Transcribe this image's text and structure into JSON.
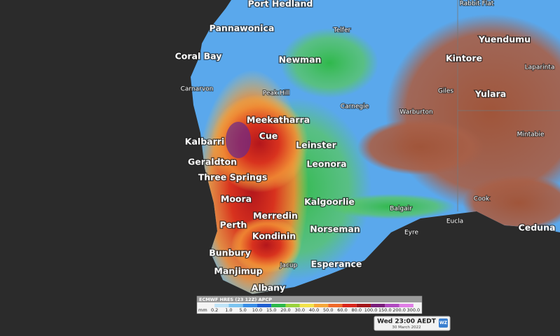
{
  "places": [
    "Port Hedland",
    "Rabbit Flat",
    "Pannawonica",
    "Telfer",
    "Yuendumu",
    "Coral Bay",
    "Newman",
    "Kintore",
    "Laparinta",
    "Carnarvon",
    "Peak Hill",
    "Giles",
    "Yulara",
    "Carnegie",
    "Warburton",
    "Meekatharra",
    "Mintabie",
    "Kalbarri",
    "Cue",
    "Leinster",
    "Geraldton",
    "Leonora",
    "Three Springs",
    "Cook",
    "Moora",
    "Kalgoorlie",
    "Balgair",
    "Merredin",
    "Perth",
    "Eucla",
    "Ceduna",
    "Eyre",
    "Norseman",
    "Kondinin",
    "Bunbury",
    "Jacup",
    "Esperance",
    "Manjimup",
    "Albany"
  ],
  "legend": {
    "title": "ECMWF HRES (23 12Z) APCP",
    "unit": "mm",
    "labels": [
      "0.2",
      "1.0",
      "5.0",
      "10.0",
      "15.0",
      "20.0",
      "30.0",
      "40.0",
      "50.0",
      "60.0",
      "80.0",
      "100.0",
      "150.0",
      "200.0",
      "300.0"
    ],
    "colors": [
      "#bfe3f7",
      "#7cc4f0",
      "#3a8ee6",
      "#1f5fd1",
      "#2db84a",
      "#9ad23c",
      "#f3e24a",
      "#f6a83a",
      "#ef6a2a",
      "#d9261c",
      "#a3161a",
      "#7a1f7a",
      "#b04ac0",
      "#e07ee6"
    ]
  },
  "timestamp": {
    "time": "Wed 23:00 AEDT",
    "date": "30 March 2022",
    "logo": "WZ"
  }
}
